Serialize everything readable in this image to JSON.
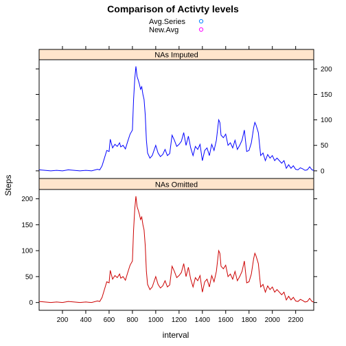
{
  "chart_data": {
    "type": "line",
    "title": "Comparison of Activty levels",
    "xlabel": "interval",
    "ylabel": "Steps",
    "legend": {
      "placement": "top",
      "entries": [
        {
          "name": "Avg.Series",
          "color": "#0080ff"
        },
        {
          "name": "New.Avg",
          "color": "#ff00ff"
        }
      ]
    },
    "xlim": [
      0,
      2355
    ],
    "ylim": [
      -15,
      218
    ],
    "x_ticks": [
      200,
      400,
      600,
      800,
      1000,
      1200,
      1400,
      1600,
      1800,
      2000,
      2200
    ],
    "y_ticks": [
      0,
      50,
      100,
      150,
      200
    ],
    "strip_fill": "#ffe5cc",
    "panels": [
      {
        "strip": "NAs Imputed",
        "color": "#0000ff",
        "y_axis_side": "right",
        "x": [
          0,
          50,
          100,
          150,
          200,
          250,
          300,
          350,
          400,
          450,
          500,
          520,
          540,
          560,
          580,
          600,
          610,
          630,
          650,
          670,
          690,
          700,
          720,
          740,
          760,
          780,
          800,
          810,
          820,
          830,
          835,
          840,
          850,
          860,
          870,
          880,
          890,
          900,
          910,
          920,
          930,
          950,
          970,
          1000,
          1020,
          1040,
          1060,
          1080,
          1100,
          1120,
          1140,
          1160,
          1180,
          1200,
          1220,
          1240,
          1260,
          1280,
          1300,
          1320,
          1340,
          1360,
          1380,
          1400,
          1420,
          1440,
          1460,
          1480,
          1500,
          1520,
          1540,
          1550,
          1560,
          1580,
          1600,
          1620,
          1640,
          1660,
          1680,
          1700,
          1720,
          1740,
          1760,
          1780,
          1800,
          1820,
          1840,
          1850,
          1860,
          1880,
          1900,
          1920,
          1940,
          1960,
          1980,
          2000,
          2020,
          2040,
          2060,
          2080,
          2100,
          2120,
          2140,
          2160,
          2180,
          2200,
          2220,
          2240,
          2260,
          2280,
          2300,
          2320,
          2340,
          2355
        ],
        "y": [
          2,
          1,
          0,
          1,
          0,
          2,
          1,
          0,
          1,
          0,
          3,
          2,
          10,
          25,
          40,
          38,
          62,
          45,
          52,
          48,
          55,
          47,
          50,
          43,
          58,
          72,
          80,
          140,
          180,
          205,
          195,
          185,
          178,
          170,
          160,
          165,
          150,
          140,
          110,
          60,
          35,
          25,
          30,
          50,
          35,
          28,
          32,
          42,
          30,
          34,
          70,
          60,
          48,
          52,
          58,
          75,
          50,
          68,
          45,
          30,
          48,
          42,
          52,
          20,
          40,
          45,
          30,
          52,
          40,
          60,
          100,
          95,
          70,
          65,
          72,
          50,
          55,
          45,
          60,
          42,
          50,
          60,
          80,
          38,
          40,
          55,
          85,
          95,
          90,
          75,
          30,
          35,
          20,
          32,
          25,
          30,
          20,
          25,
          20,
          15,
          20,
          5,
          12,
          5,
          10,
          3,
          2,
          6,
          4,
          1,
          2,
          8,
          2,
          1
        ],
        "y_ticks": [
          0,
          50,
          100,
          150,
          200
        ]
      },
      {
        "strip": "NAs Omitted",
        "color": "#cc0000",
        "y_axis_side": "left",
        "x": [
          0,
          50,
          100,
          150,
          200,
          250,
          300,
          350,
          400,
          450,
          500,
          520,
          540,
          560,
          580,
          600,
          610,
          630,
          650,
          670,
          690,
          700,
          720,
          740,
          760,
          780,
          800,
          810,
          820,
          830,
          835,
          840,
          850,
          860,
          870,
          880,
          890,
          900,
          910,
          920,
          930,
          950,
          970,
          1000,
          1020,
          1040,
          1060,
          1080,
          1100,
          1120,
          1140,
          1160,
          1180,
          1200,
          1220,
          1240,
          1260,
          1280,
          1300,
          1320,
          1340,
          1360,
          1380,
          1400,
          1420,
          1440,
          1460,
          1480,
          1500,
          1520,
          1540,
          1550,
          1560,
          1580,
          1600,
          1620,
          1640,
          1660,
          1680,
          1700,
          1720,
          1740,
          1760,
          1780,
          1800,
          1820,
          1840,
          1850,
          1860,
          1880,
          1900,
          1920,
          1940,
          1960,
          1980,
          2000,
          2020,
          2040,
          2060,
          2080,
          2100,
          2120,
          2140,
          2160,
          2180,
          2200,
          2220,
          2240,
          2260,
          2280,
          2300,
          2320,
          2340,
          2355
        ],
        "y": [
          2,
          1,
          0,
          1,
          0,
          2,
          1,
          0,
          1,
          0,
          3,
          2,
          10,
          25,
          40,
          38,
          62,
          45,
          52,
          48,
          55,
          47,
          50,
          43,
          58,
          72,
          80,
          140,
          180,
          205,
          195,
          185,
          178,
          170,
          160,
          165,
          150,
          140,
          110,
          60,
          35,
          25,
          30,
          50,
          35,
          28,
          32,
          42,
          30,
          34,
          70,
          60,
          48,
          52,
          58,
          75,
          50,
          68,
          45,
          30,
          48,
          42,
          52,
          20,
          40,
          45,
          30,
          52,
          40,
          60,
          100,
          95,
          70,
          65,
          72,
          50,
          55,
          45,
          60,
          42,
          50,
          60,
          80,
          38,
          40,
          55,
          85,
          95,
          90,
          75,
          30,
          35,
          20,
          32,
          25,
          30,
          20,
          25,
          20,
          15,
          20,
          5,
          12,
          5,
          10,
          3,
          2,
          6,
          4,
          1,
          2,
          8,
          2,
          1
        ],
        "y_ticks": [
          0,
          50,
          100,
          150,
          200
        ]
      }
    ]
  }
}
